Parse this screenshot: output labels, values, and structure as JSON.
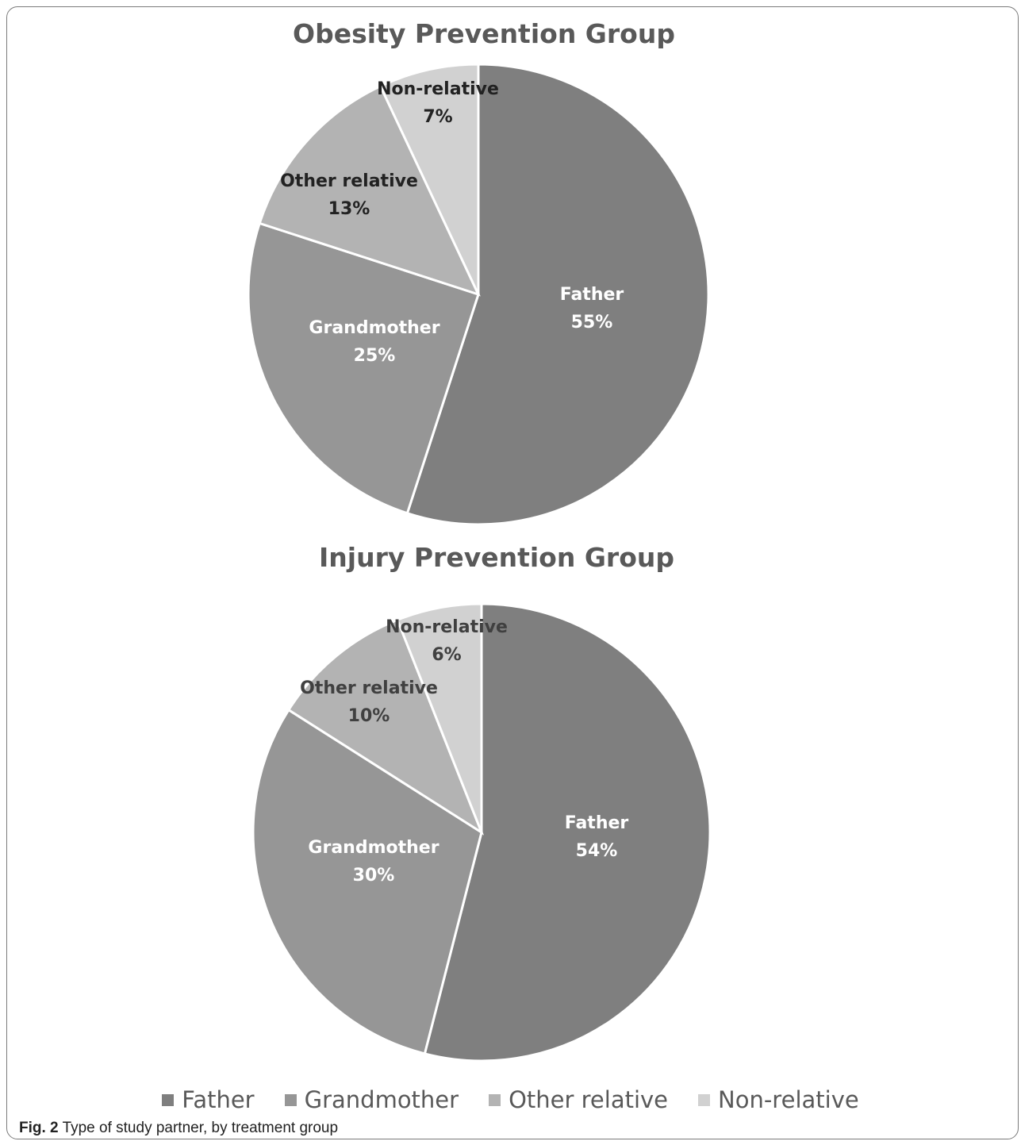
{
  "colors": {
    "Father": "#7f7f7f",
    "Grandmother": "#969696",
    "Other relative": "#b3b3b3",
    "Non-relative": "#d1d1d1"
  },
  "chart_data": [
    {
      "type": "pie",
      "title": "Obesity Prevention Group",
      "slices": [
        {
          "label": "Father",
          "value": 55,
          "display": "55%"
        },
        {
          "label": "Grandmother",
          "value": 25,
          "display": "25%"
        },
        {
          "label": "Other relative",
          "value": 13,
          "display": "13%"
        },
        {
          "label": "Non-relative",
          "value": 7,
          "display": "7%"
        }
      ]
    },
    {
      "type": "pie",
      "title": "Injury Prevention Group",
      "slices": [
        {
          "label": "Father",
          "value": 54,
          "display": "54%"
        },
        {
          "label": "Grandmother",
          "value": 30,
          "display": "30%"
        },
        {
          "label": "Other relative",
          "value": 10,
          "display": "10%"
        },
        {
          "label": "Non-relative",
          "value": 6,
          "display": "6%"
        }
      ]
    }
  ],
  "legend": {
    "placement": "bottom",
    "items": [
      "Father",
      "Grandmother",
      "Other relative",
      "Non-relative"
    ]
  },
  "caption": {
    "figure_label": "Fig. 2",
    "text": "Type of study partner, by treatment group"
  }
}
